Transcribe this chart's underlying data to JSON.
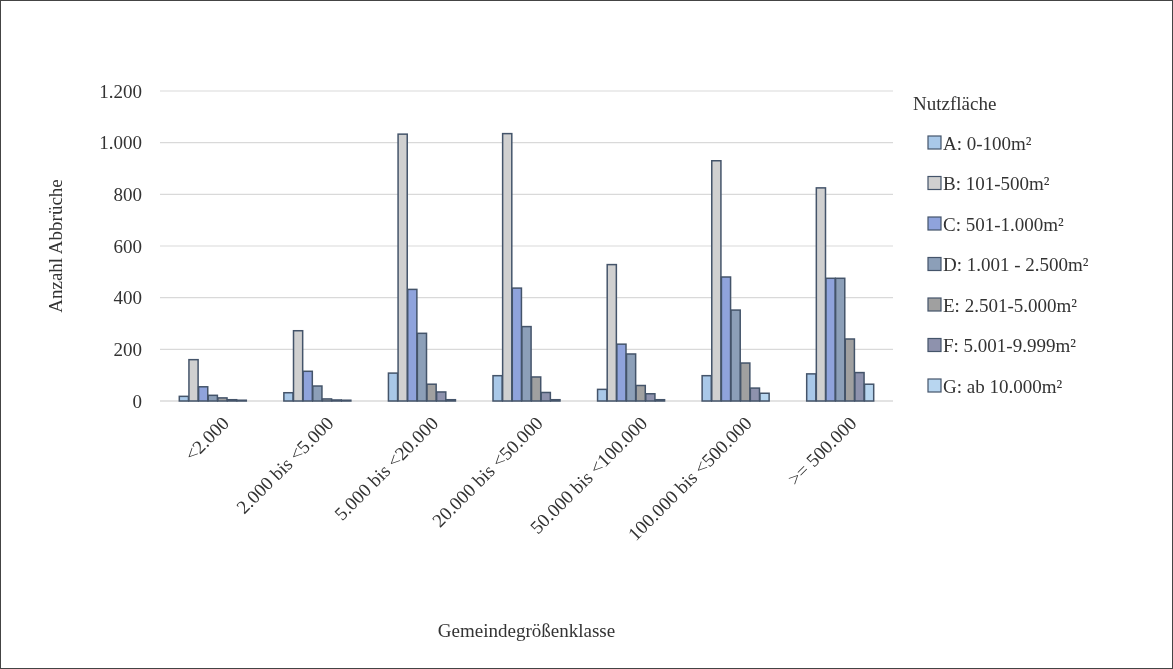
{
  "chart_data": {
    "type": "bar",
    "xlabel": "Gemeindegrößenklasse",
    "ylabel": "Anzahl Abbrüche",
    "legend_title": "Nutzfläche",
    "legend": "right",
    "grid": "y",
    "categories": [
      "<2.000",
      "2.000 bis <5.000",
      "5.000 bis <20.000",
      "20.000 bis <50.000",
      "50.000 bis <100.000",
      "100.000 bis <500.000",
      ">= 500.000"
    ],
    "ylim": [
      0,
      1200
    ],
    "yticks": [
      0,
      {
        "value": 200,
        "label": "200"
      },
      {
        "value": 400,
        "label": "400"
      },
      {
        "value": 600,
        "label": "600"
      },
      {
        "value": 800,
        "label": "800"
      },
      {
        "value": 1000,
        "label": "1.000"
      },
      {
        "value": 1200,
        "label": "1.200"
      }
    ],
    "series": [
      {
        "name": "A: 0-100m²",
        "color": "#a9c8e8",
        "values": [
          18,
          32,
          108,
          98,
          45,
          98,
          105
        ]
      },
      {
        "name": "B: 101-500m²",
        "color": "#d0d0d0",
        "values": [
          160,
          272,
          1033,
          1035,
          528,
          930,
          825
        ]
      },
      {
        "name": "C: 501-1.000m²",
        "color": "#8fa3dc",
        "values": [
          55,
          115,
          432,
          437,
          220,
          480,
          475
        ]
      },
      {
        "name": "D: 1.001 - 2.500m²",
        "color": "#8c9fb8",
        "values": [
          22,
          58,
          262,
          288,
          182,
          352,
          475
        ]
      },
      {
        "name": "E: 2.501-5.000m²",
        "color": "#a0a0a0",
        "values": [
          12,
          8,
          65,
          93,
          60,
          147,
          240
        ]
      },
      {
        "name": "F: 5.001-9.999m²",
        "color": "#8e92ad",
        "values": [
          5,
          4,
          35,
          33,
          28,
          50,
          110
        ]
      },
      {
        "name": "G: ab 10.000m²",
        "color": "#b8d6f0",
        "values": [
          3,
          3,
          5,
          5,
          5,
          30,
          65
        ]
      }
    ]
  }
}
